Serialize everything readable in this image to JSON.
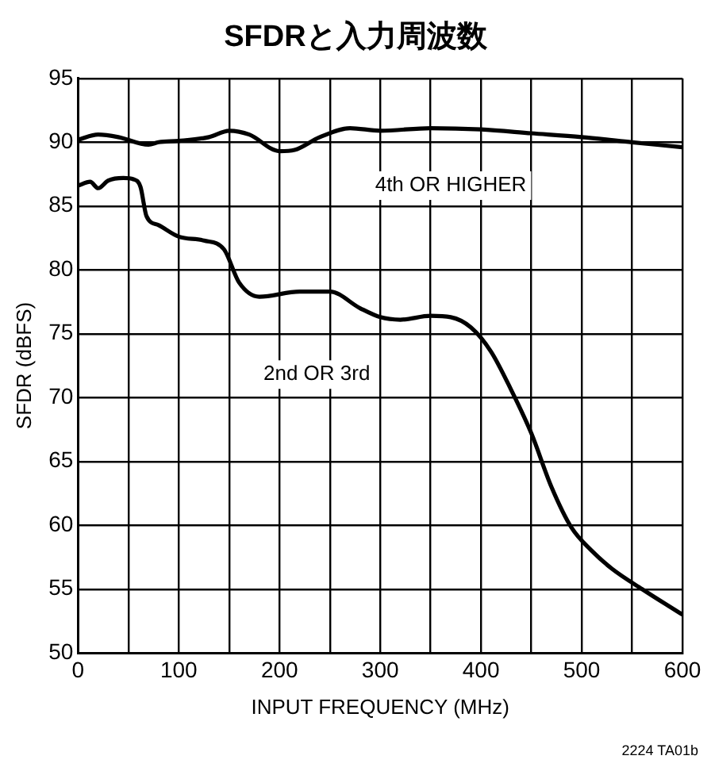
{
  "chart_data": {
    "type": "line",
    "title": "SFDRと入力周波数",
    "xlabel": "INPUT FREQUENCY (MHz)",
    "ylabel": "SFDR (dBFS)",
    "xlim": [
      0,
      600
    ],
    "xticks": [
      0,
      100,
      200,
      300,
      400,
      500,
      600
    ],
    "ylim": [
      50,
      95
    ],
    "yticks": [
      50,
      55,
      60,
      65,
      70,
      75,
      80,
      85,
      90,
      95
    ],
    "grid": true,
    "legend": false,
    "marker": "none",
    "line_style": "solid",
    "series": [
      {
        "name": "4th OR HIGHER",
        "color": "#000000",
        "x": [
          0,
          20,
          40,
          70,
          80,
          100,
          130,
          150,
          170,
          200,
          215,
          240,
          270,
          300,
          350,
          400,
          450,
          500,
          550,
          600
        ],
        "values": [
          90.2,
          90.6,
          90.4,
          89.8,
          90.0,
          90.1,
          90.4,
          90.9,
          90.6,
          89.3,
          89.4,
          90.4,
          91.1,
          90.9,
          91.1,
          91.0,
          90.7,
          90.4,
          90.0,
          89.6
        ]
      },
      {
        "name": "2nd OR 3rd",
        "color": "#000000",
        "x": [
          0,
          12,
          20,
          30,
          45,
          55,
          62,
          68,
          80,
          100,
          125,
          145,
          160,
          180,
          220,
          250,
          280,
          300,
          320,
          350,
          370,
          390,
          410,
          430,
          450,
          470,
          490,
          510,
          530,
          560,
          600
        ],
        "values": [
          86.6,
          86.9,
          86.4,
          87.0,
          87.2,
          87.1,
          86.5,
          84.2,
          83.5,
          82.6,
          82.3,
          81.6,
          79.0,
          77.9,
          78.3,
          78.3,
          77.0,
          76.3,
          76.1,
          76.4,
          76.3,
          75.5,
          73.6,
          70.6,
          67.2,
          63.0,
          59.8,
          58.0,
          56.6,
          55.0,
          53.0
        ]
      }
    ],
    "annotations": [
      "2224 TA01b"
    ]
  }
}
